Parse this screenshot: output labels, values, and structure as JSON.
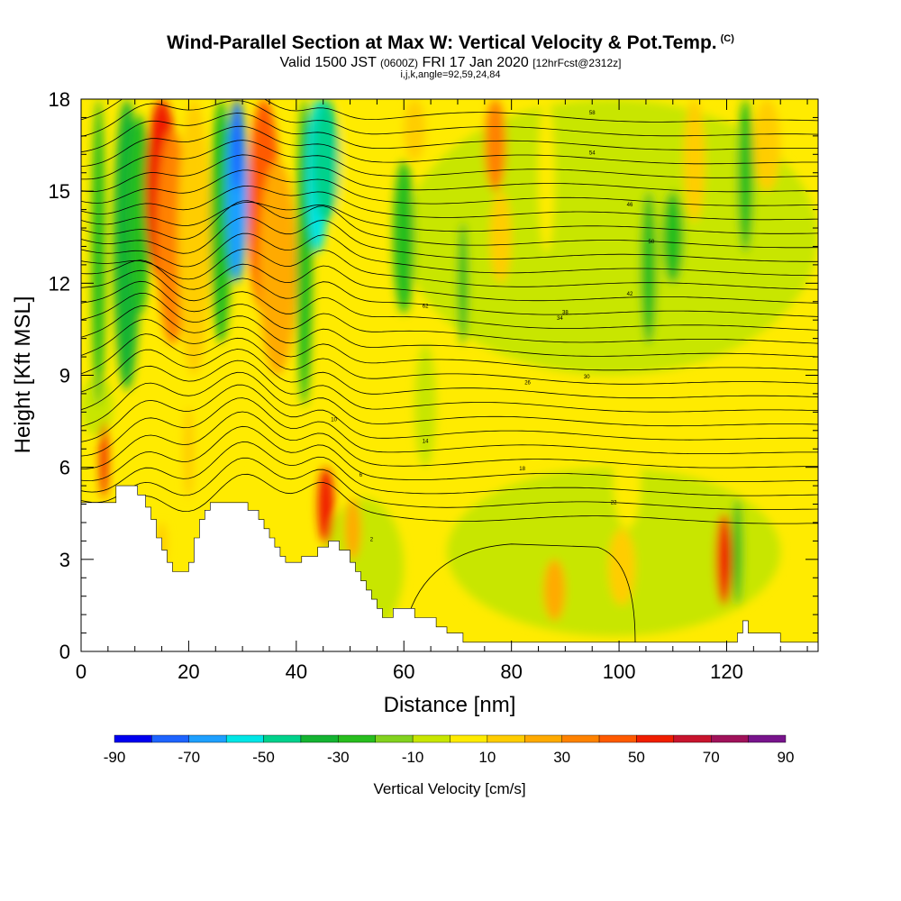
{
  "header": {
    "title": "Wind-Parallel Section at Max W: Vertical Velocity & Pot.Temp.",
    "copyright": "(C)",
    "valid_prefix": "Valid 1500 JST",
    "valid_utc": "(0600Z)",
    "valid_date": "FRI 17 Jan 2020",
    "forecast": "[12hrFcst@2312z]",
    "params": "i,j,k,angle=92,59,24,84"
  },
  "chart_data": {
    "type": "heatmap",
    "xlabel": "Distance [nm]",
    "ylabel": "Height [Kft MSL]",
    "xlim": [
      0,
      137
    ],
    "ylim": [
      0,
      18
    ],
    "x_ticks": [
      0,
      20,
      40,
      60,
      80,
      100,
      120
    ],
    "y_ticks": [
      0,
      3,
      6,
      9,
      12,
      15,
      18
    ],
    "colorbar": {
      "label": "Vertical Velocity [cm/s]",
      "tick_labels": [
        "-90",
        "-70",
        "-50",
        "-30",
        "-10",
        "10",
        "30",
        "50",
        "70",
        "90"
      ],
      "colors": [
        "#0000f0",
        "#1e64ff",
        "#1ea0ff",
        "#00e6e6",
        "#00d28c",
        "#14b432",
        "#28be1e",
        "#82d21e",
        "#c8e600",
        "#ffeb00",
        "#ffcd00",
        "#ffaa00",
        "#ff8200",
        "#ff5a00",
        "#f01e00",
        "#c8142d",
        "#a0125a",
        "#78148c"
      ]
    },
    "terrain_kft": [
      [
        0,
        4.85
      ],
      [
        6.5,
        4.85
      ],
      [
        6.5,
        5.4
      ],
      [
        10.5,
        5.4
      ],
      [
        10.5,
        5.1
      ],
      [
        12,
        5.1
      ],
      [
        12,
        4.7
      ],
      [
        13,
        4.7
      ],
      [
        13,
        4.3
      ],
      [
        14,
        4.3
      ],
      [
        14,
        3.7
      ],
      [
        15,
        3.7
      ],
      [
        15,
        3.3
      ],
      [
        16,
        3.3
      ],
      [
        16,
        2.9
      ],
      [
        17,
        2.9
      ],
      [
        17,
        2.6
      ],
      [
        20,
        2.6
      ],
      [
        20,
        2.9
      ],
      [
        21,
        2.9
      ],
      [
        21,
        3.7
      ],
      [
        22,
        3.7
      ],
      [
        22,
        4.3
      ],
      [
        23,
        4.3
      ],
      [
        23,
        4.6
      ],
      [
        24,
        4.6
      ],
      [
        24,
        4.85
      ],
      [
        31,
        4.85
      ],
      [
        31,
        4.6
      ],
      [
        33,
        4.6
      ],
      [
        33,
        4.3
      ],
      [
        34,
        4.3
      ],
      [
        34,
        4.0
      ],
      [
        35,
        4.0
      ],
      [
        35,
        3.7
      ],
      [
        36,
        3.7
      ],
      [
        36,
        3.4
      ],
      [
        37,
        3.4
      ],
      [
        37,
        3.1
      ],
      [
        38,
        3.1
      ],
      [
        38,
        2.9
      ],
      [
        41,
        2.9
      ],
      [
        41,
        3.1
      ],
      [
        44,
        3.1
      ],
      [
        44,
        3.4
      ],
      [
        46,
        3.4
      ],
      [
        46,
        3.6
      ],
      [
        48,
        3.6
      ],
      [
        48,
        3.3
      ],
      [
        50,
        3.3
      ],
      [
        50,
        2.9
      ],
      [
        51,
        2.9
      ],
      [
        51,
        2.6
      ],
      [
        52,
        2.6
      ],
      [
        52,
        2.3
      ],
      [
        53,
        2.3
      ],
      [
        53,
        2.0
      ],
      [
        54,
        2.0
      ],
      [
        54,
        1.7
      ],
      [
        55,
        1.7
      ],
      [
        55,
        1.4
      ],
      [
        56,
        1.4
      ],
      [
        56,
        1.1
      ],
      [
        58,
        1.1
      ],
      [
        58,
        1.4
      ],
      [
        62,
        1.4
      ],
      [
        62,
        1.1
      ],
      [
        66,
        1.1
      ],
      [
        66,
        0.8
      ],
      [
        68,
        0.8
      ],
      [
        68,
        0.6
      ],
      [
        71,
        0.6
      ],
      [
        71,
        0.3
      ],
      [
        74,
        0.3
      ],
      [
        74,
        0.3
      ],
      [
        122,
        0.3
      ],
      [
        122,
        0.6
      ],
      [
        123,
        0.6
      ],
      [
        123,
        1.0
      ],
      [
        124,
        1.0
      ],
      [
        124,
        0.6
      ],
      [
        130,
        0.6
      ],
      [
        130,
        0.3
      ],
      [
        137,
        0.3
      ]
    ],
    "isentrope_values_labeled": [
      "2",
      "6",
      "10",
      "14",
      "18",
      "22",
      "26",
      "30",
      "34",
      "38",
      "42",
      "46",
      "50",
      "54",
      "58",
      "62"
    ]
  }
}
